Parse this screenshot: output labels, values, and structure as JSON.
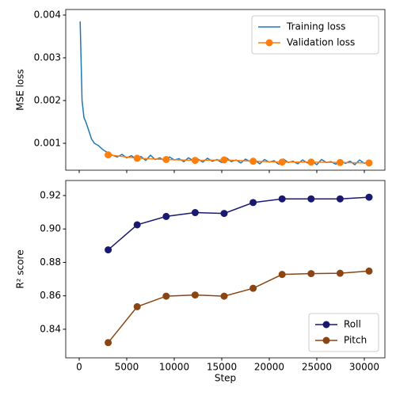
{
  "chart_data": [
    {
      "type": "line",
      "ylabel": "MSE loss",
      "xlim": [
        -1417,
        32167
      ],
      "xticks": [
        0,
        5000,
        10000,
        15000,
        20000,
        25000,
        30000
      ],
      "ylim": [
        0.00037,
        0.00413
      ],
      "yticks": [
        0.001,
        0.002,
        0.003,
        0.004
      ],
      "legend": "upper right",
      "series": [
        {
          "name": "Training loss",
          "color": "#1f77b4",
          "marker": "none",
          "x": [
            100,
            300,
            500,
            700,
            1000,
            1300,
            1600,
            2000,
            2500,
            3000,
            3500,
            4000,
            4500,
            5000,
            5500,
            6000,
            6500,
            7000,
            7500,
            8000,
            8500,
            9000,
            9500,
            10000,
            10500,
            11000,
            11500,
            12000,
            12500,
            13000,
            13500,
            14000,
            14500,
            15000,
            15500,
            16000,
            16500,
            17000,
            17500,
            18000,
            18500,
            19000,
            19500,
            20000,
            20500,
            21000,
            21500,
            22000,
            22500,
            23000,
            23500,
            24000,
            24500,
            25000,
            25500,
            26000,
            26500,
            27000,
            27500,
            28000,
            28500,
            29000,
            29500,
            30000,
            30500
          ],
          "values": [
            0.00385,
            0.002,
            0.0016,
            0.0015,
            0.0013,
            0.0011,
            0.001,
            0.00095,
            0.00085,
            0.00078,
            0.00072,
            0.00068,
            0.00074,
            0.00066,
            0.00071,
            0.00063,
            0.00069,
            0.0006,
            0.00072,
            0.00062,
            0.00066,
            0.00058,
            0.00068,
            0.00061,
            0.00064,
            0.00057,
            0.00066,
            0.00059,
            0.00063,
            0.00056,
            0.00065,
            0.00058,
            0.00062,
            0.00055,
            0.00066,
            0.00057,
            0.00061,
            0.00054,
            0.00063,
            0.00057,
            0.0006,
            0.00052,
            0.00062,
            0.00056,
            0.00059,
            0.00051,
            0.00063,
            0.00055,
            0.00058,
            0.00052,
            0.00061,
            0.00054,
            0.00058,
            0.0005,
            0.00062,
            0.00055,
            0.00057,
            0.00051,
            0.0006,
            0.00053,
            0.00058,
            0.0005,
            0.00061,
            0.00053,
            0.00056
          ]
        },
        {
          "name": "Validation loss",
          "color": "#ff7f0e",
          "marker": "o",
          "x": [
            3050,
            6100,
            9150,
            12200,
            15250,
            18300,
            21350,
            24400,
            27450,
            30500
          ],
          "values": [
            0.00073,
            0.00065,
            0.00062,
            0.0006,
            0.00061,
            0.00058,
            0.00056,
            0.00056,
            0.00055,
            0.00054
          ]
        }
      ]
    },
    {
      "type": "line",
      "ylabel": "R² score",
      "xlabel": "Step",
      "xlim": [
        -1417,
        32167
      ],
      "xticks": [
        0,
        5000,
        10000,
        15000,
        20000,
        25000,
        30000
      ],
      "ylim": [
        0.8229,
        0.929
      ],
      "yticks": [
        0.84,
        0.86,
        0.88,
        {
          "value": 0.9,
          "label": "0.90"
        },
        0.92
      ],
      "legend": "lower right",
      "series": [
        {
          "name": "Roll",
          "color": "#191970",
          "marker": "o",
          "x": [
            3050,
            6100,
            9150,
            12200,
            15250,
            18300,
            21350,
            24400,
            27450,
            30500
          ],
          "values": [
            0.8875,
            0.9025,
            0.9075,
            0.9098,
            0.9093,
            0.9158,
            0.918,
            0.918,
            0.918,
            0.919
          ]
        },
        {
          "name": "Pitch",
          "color": "#8b4513",
          "marker": "o",
          "x": [
            3050,
            6100,
            9150,
            12200,
            15250,
            18300,
            21350,
            24400,
            27450,
            30500
          ],
          "values": [
            0.832,
            0.8535,
            0.8598,
            0.8605,
            0.8598,
            0.8645,
            0.8728,
            0.8733,
            0.8735,
            0.8748
          ]
        }
      ]
    }
  ]
}
